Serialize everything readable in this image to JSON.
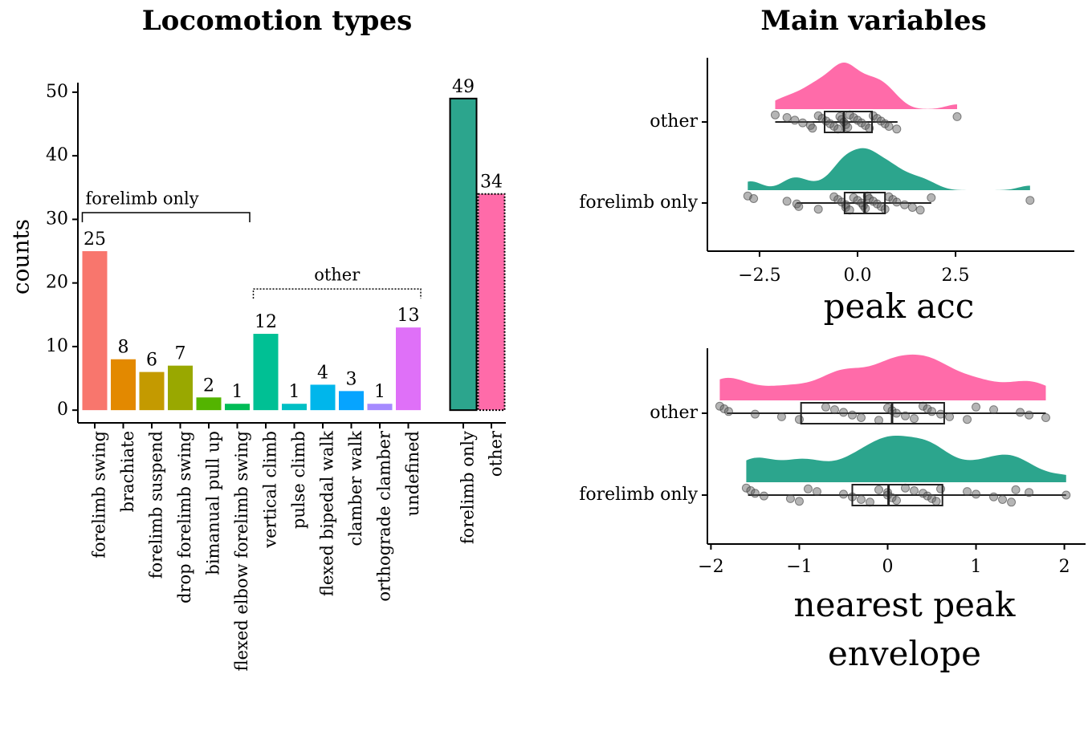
{
  "chart_data": [
    {
      "type": "bar",
      "title": "Locomotion types",
      "ylabel": "counts",
      "categories": [
        "forelimb swing",
        "brachiate",
        "forelimb suspend",
        "drop forelimb swing",
        "bimanual pull up",
        "flexed elbow forelimb swing",
        "vertical climb",
        "pulse climb",
        "flexed bipedal walk",
        "clamber walk",
        "orthograde clamber",
        "undefined"
      ],
      "values": [
        25,
        8,
        6,
        7,
        2,
        1,
        12,
        1,
        4,
        3,
        1,
        13
      ],
      "colors": [
        "#f8766d",
        "#e38900",
        "#c49a00",
        "#99a800",
        "#53b400",
        "#00bc56",
        "#00c094",
        "#00bfc4",
        "#00b6eb",
        "#06a4ff",
        "#a58aff",
        "#df70f8"
      ],
      "ylim": [
        -2,
        51.5
      ],
      "yticks": [
        0,
        10,
        20,
        30,
        40,
        50
      ],
      "groups": [
        {
          "label": "forelimb only",
          "line": "solid"
        },
        {
          "label": "other",
          "line": "dotted"
        }
      ],
      "totals": {
        "categories": [
          "forelimb only",
          "other"
        ],
        "values": [
          49,
          34
        ],
        "colors": [
          "#2ca58d",
          "#ff6ba9"
        ],
        "borders": [
          "solid",
          "dotted"
        ]
      }
    },
    {
      "type": "raincloud",
      "title": "Main variables",
      "xlabel": [
        "peak acc"
      ],
      "xlim": [
        -3.83,
        5.53
      ],
      "xticks": [
        {
          "value": -2.5,
          "label": "−2.5"
        },
        {
          "value": 0,
          "label": "0.0"
        },
        {
          "value": 2.5,
          "label": "2.5"
        }
      ],
      "series": [
        {
          "name": "other",
          "color": "#ff6ba9",
          "box": [
            -2.1,
            -0.84,
            -0.35,
            0.37,
            1.02
          ],
          "points": [
            -2.1,
            -1.8,
            -1.6,
            -1.4,
            -1.2,
            -1.15,
            -1.0,
            -0.9,
            -0.8,
            -0.7,
            -0.6,
            -0.5,
            -0.45,
            -0.4,
            -0.35,
            -0.3,
            -0.25,
            -0.2,
            -0.1,
            0.0,
            0.1,
            0.2,
            0.3,
            0.4,
            0.5,
            0.6,
            0.7,
            0.8,
            1.0,
            2.54
          ]
        },
        {
          "name": "forelimb only",
          "color": "#2ca58d",
          "box": [
            -1.55,
            -0.33,
            0.18,
            0.7,
            1.88
          ],
          "points": [
            -2.8,
            -2.65,
            -1.8,
            -1.55,
            -1.5,
            -1.0,
            -0.6,
            -0.5,
            -0.4,
            -0.3,
            -0.3,
            -0.2,
            -0.1,
            0.0,
            0.1,
            0.15,
            0.2,
            0.25,
            0.3,
            0.4,
            0.5,
            0.6,
            0.7,
            0.8,
            0.9,
            1.0,
            1.2,
            1.4,
            1.6,
            1.88,
            4.4
          ]
        }
      ]
    },
    {
      "type": "raincloud",
      "xlabel": [
        "nearest peak",
        "envelope"
      ],
      "xlim": [
        -2.04,
        2.24
      ],
      "xticks": [
        {
          "value": -2,
          "label": "−2"
        },
        {
          "value": -1,
          "label": "−1"
        },
        0,
        1,
        2
      ],
      "series": [
        {
          "name": "other",
          "color": "#ff6ba9",
          "box": [
            -1.82,
            -0.98,
            0.05,
            0.64,
            1.79
          ],
          "points": [
            -1.9,
            -1.85,
            -1.8,
            -1.5,
            -1.2,
            -1.0,
            -0.7,
            -0.6,
            -0.5,
            -0.4,
            -0.3,
            -0.1,
            0.0,
            0.05,
            0.1,
            0.2,
            0.3,
            0.4,
            0.45,
            0.5,
            0.6,
            0.7,
            0.9,
            1.0,
            1.2,
            1.5,
            1.6,
            1.79
          ]
        },
        {
          "name": "forelimb only",
          "color": "#2ca58d",
          "box": [
            -1.58,
            -0.4,
            0.01,
            0.62,
            2.02
          ],
          "points": [
            -1.6,
            -1.55,
            -1.5,
            -1.4,
            -1.1,
            -1.0,
            -0.9,
            -0.8,
            -0.5,
            -0.4,
            -0.3,
            -0.2,
            -0.1,
            0.0,
            0.0,
            0.05,
            0.1,
            0.2,
            0.3,
            0.4,
            0.45,
            0.5,
            0.55,
            0.6,
            0.9,
            1.0,
            1.2,
            1.3,
            1.4,
            1.45,
            1.6,
            2.02
          ]
        }
      ]
    }
  ]
}
